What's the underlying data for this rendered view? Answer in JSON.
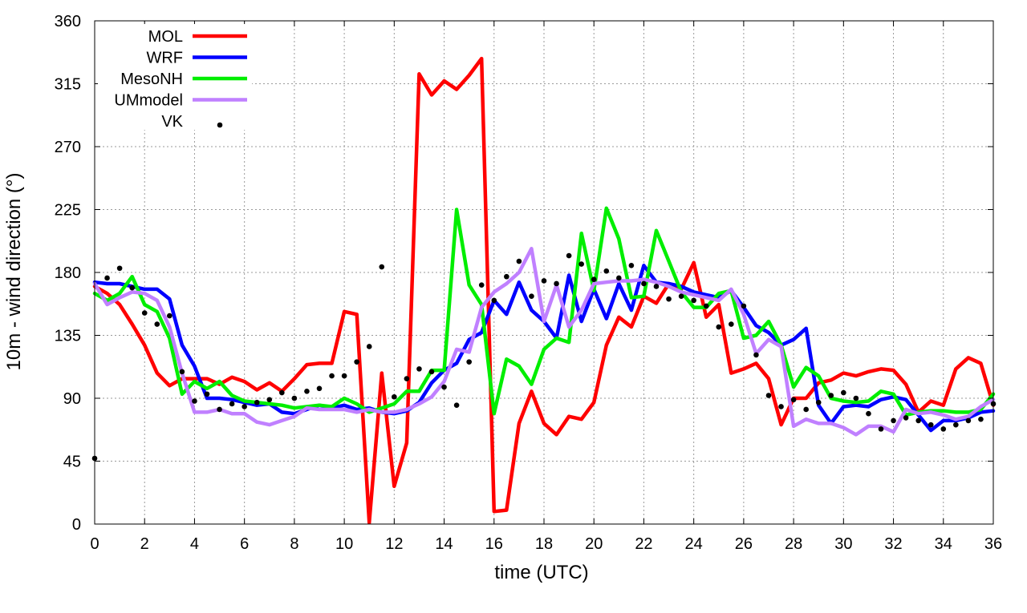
{
  "chart_data": {
    "type": "line",
    "title": "",
    "xlabel": "time (UTC)",
    "ylabel": "10m - wind direction (°)",
    "xlim": [
      0,
      36
    ],
    "ylim": [
      0,
      360
    ],
    "x_ticks": [
      0,
      2,
      4,
      6,
      8,
      10,
      12,
      14,
      16,
      18,
      20,
      22,
      24,
      26,
      28,
      30,
      32,
      34,
      36
    ],
    "y_ticks": [
      0,
      45,
      90,
      135,
      180,
      225,
      270,
      315,
      360
    ],
    "grid": true,
    "legend_position": "top-left",
    "series": [
      {
        "name": "MOL",
        "color": "#ff0000",
        "style": "line",
        "x": [
          0,
          0.5,
          1,
          1.5,
          2,
          2.5,
          3,
          3.5,
          4,
          4.5,
          5,
          5.5,
          6,
          6.5,
          7,
          7.5,
          8,
          8.5,
          9,
          9.5,
          10,
          10.5,
          11,
          11.5,
          12,
          12.5,
          13,
          13.5,
          14,
          14.5,
          15,
          15.5,
          16,
          16.5,
          17,
          17.5,
          18,
          18.5,
          19,
          19.5,
          20,
          20.5,
          21,
          21.5,
          22,
          22.5,
          23,
          23.5,
          24,
          24.5,
          25,
          25.5,
          26,
          26.5,
          27,
          27.5,
          28,
          28.5,
          29,
          29.5,
          30,
          30.5,
          31,
          31.5,
          32,
          32.5,
          33,
          33.5,
          34,
          34.5,
          35,
          35.5,
          36
        ],
        "y": [
          170,
          165,
          157,
          143,
          128,
          108,
          99,
          104,
          104,
          104,
          100,
          105,
          102,
          96,
          101,
          95,
          104,
          114,
          115,
          115,
          152,
          150,
          1,
          108,
          27,
          58,
          322,
          307,
          317,
          311,
          321,
          333,
          9,
          10,
          72,
          95,
          72,
          64,
          77,
          75,
          87,
          128,
          148,
          141,
          163,
          158,
          172,
          168,
          187,
          148,
          157,
          108,
          111,
          115,
          104,
          71,
          90,
          90,
          101,
          103,
          108,
          106,
          109,
          111,
          110,
          100,
          80,
          88,
          85,
          111,
          119,
          115,
          85
        ]
      },
      {
        "name": "WRF",
        "color": "#0000ff",
        "style": "line",
        "x": [
          0,
          0.5,
          1,
          1.5,
          2,
          2.5,
          3,
          3.5,
          4,
          4.5,
          5,
          5.5,
          6,
          6.5,
          7,
          7.5,
          8,
          8.5,
          9,
          9.5,
          10,
          10.5,
          11,
          11.5,
          12,
          12.5,
          13,
          13.5,
          14,
          14.5,
          15,
          15.5,
          16,
          16.5,
          17,
          17.5,
          18,
          18.5,
          19,
          19.5,
          20,
          20.5,
          21,
          21.5,
          22,
          22.5,
          23,
          23.5,
          24,
          24.5,
          25,
          25.5,
          26,
          26.5,
          27,
          27.5,
          28,
          28.5,
          29,
          29.5,
          30,
          30.5,
          31,
          31.5,
          32,
          32.5,
          33,
          33.5,
          34,
          34.5,
          35,
          35.5,
          36
        ],
        "y": [
          173,
          172,
          172,
          170,
          168,
          168,
          161,
          128,
          113,
          90,
          90,
          89,
          87,
          85,
          86,
          80,
          79,
          82,
          85,
          83,
          85,
          82,
          83,
          80,
          79,
          81,
          87,
          101,
          110,
          115,
          132,
          137,
          160,
          150,
          173,
          153,
          145,
          133,
          178,
          145,
          168,
          147,
          172,
          153,
          185,
          173,
          172,
          170,
          166,
          164,
          162,
          167,
          155,
          142,
          137,
          128,
          132,
          140,
          85,
          72,
          84,
          85,
          84,
          89,
          91,
          89,
          78,
          67,
          74,
          74,
          76,
          80,
          81
        ]
      },
      {
        "name": "MesoNH",
        "color": "#00ee00",
        "style": "line",
        "x": [
          0,
          0.5,
          1,
          1.5,
          2,
          2.5,
          3,
          3.5,
          4,
          4.5,
          5,
          5.5,
          6,
          6.5,
          7,
          7.5,
          8,
          8.5,
          9,
          9.5,
          10,
          10.5,
          11,
          11.5,
          12,
          12.5,
          13,
          13.5,
          14,
          14.5,
          15,
          15.5,
          16,
          16.5,
          17,
          17.5,
          18,
          18.5,
          19,
          19.5,
          20,
          20.5,
          21,
          21.5,
          22,
          22.5,
          23,
          23.5,
          24,
          24.5,
          25,
          25.5,
          26,
          26.5,
          27,
          27.5,
          28,
          28.5,
          29,
          29.5,
          30,
          30.5,
          31,
          31.5,
          32,
          32.5,
          33,
          33.5,
          34,
          34.5,
          35,
          35.5,
          36
        ],
        "y": [
          165,
          160,
          165,
          177,
          157,
          152,
          133,
          93,
          102,
          97,
          102,
          92,
          88,
          87,
          86,
          85,
          83,
          84,
          85,
          84,
          90,
          86,
          80,
          83,
          86,
          95,
          95,
          110,
          110,
          225,
          171,
          157,
          79,
          118,
          113,
          100,
          125,
          133,
          130,
          208,
          167,
          226,
          204,
          162,
          163,
          210,
          188,
          166,
          155,
          155,
          165,
          167,
          133,
          135,
          145,
          128,
          98,
          112,
          106,
          90,
          88,
          87,
          88,
          95,
          93,
          78,
          80,
          81,
          81,
          80,
          80,
          82,
          93
        ]
      },
      {
        "name": "UMmodel",
        "color": "#c080ff",
        "style": "line",
        "x": [
          0,
          0.5,
          1,
          1.5,
          2,
          2.5,
          3,
          3.5,
          4,
          4.5,
          5,
          5.5,
          6,
          6.5,
          7,
          7.5,
          8,
          8.5,
          9,
          9.5,
          10,
          10.5,
          11,
          11.5,
          12,
          12.5,
          13,
          13.5,
          14,
          14.5,
          15,
          15.5,
          16,
          16.5,
          17,
          17.5,
          18,
          18.5,
          19,
          19.5,
          20,
          20.5,
          21,
          21.5,
          22,
          22.5,
          23,
          23.5,
          24,
          24.5,
          25,
          25.5,
          26,
          26.5,
          27,
          27.5,
          28,
          28.5,
          29,
          29.5,
          30,
          30.5,
          31,
          31.5,
          32,
          32.5,
          33,
          33.5,
          34,
          34.5,
          35,
          35.5,
          36
        ],
        "y": [
          172,
          157,
          162,
          166,
          165,
          160,
          141,
          108,
          80,
          80,
          82,
          79,
          79,
          73,
          71,
          74,
          77,
          83,
          82,
          82,
          82,
          80,
          82,
          80,
          80,
          82,
          86,
          91,
          102,
          125,
          123,
          155,
          166,
          172,
          180,
          197,
          145,
          171,
          141,
          153,
          172,
          173,
          174,
          174,
          175,
          173,
          170,
          166,
          164,
          162,
          160,
          168,
          150,
          122,
          132,
          127,
          70,
          75,
          72,
          72,
          69,
          64,
          70,
          70,
          66,
          82,
          79,
          80,
          78,
          75,
          77,
          84,
          89
        ]
      },
      {
        "name": "VK",
        "color": "#000000",
        "style": "points",
        "x": [
          0,
          0.5,
          1,
          1.5,
          2,
          2.5,
          3,
          3.5,
          4,
          4.5,
          5,
          5.5,
          6,
          6.5,
          7,
          7.5,
          8,
          8.5,
          9,
          9.5,
          10,
          10.5,
          11,
          11.5,
          12,
          12.5,
          13,
          13.5,
          14,
          14.5,
          15,
          15.5,
          16,
          16.5,
          17,
          17.5,
          18,
          18.5,
          19,
          19.5,
          20,
          20.5,
          21,
          21.5,
          22,
          22.5,
          23,
          23.5,
          24,
          24.5,
          25,
          25.5,
          26,
          26.5,
          27,
          27.5,
          28,
          28.5,
          29,
          29.5,
          30,
          30.5,
          31,
          31.5,
          32,
          32.5,
          33,
          33.5,
          34,
          34.5,
          35,
          35.5,
          36
        ],
        "y": [
          47,
          176,
          183,
          169,
          151,
          143,
          149,
          109,
          88,
          93,
          82,
          86,
          84,
          87,
          89,
          94,
          90,
          95,
          97,
          106,
          106,
          116,
          127,
          184,
          91,
          104,
          111,
          109,
          98,
          85,
          116,
          171,
          160,
          177,
          188,
          163,
          174,
          172,
          192,
          186,
          175,
          181,
          176,
          185,
          172,
          170,
          161,
          163,
          160,
          156,
          141,
          143,
          156,
          121,
          92,
          84,
          89,
          82,
          87,
          92,
          94,
          90,
          79,
          68,
          74,
          76,
          74,
          71,
          68,
          71,
          74,
          75,
          86
        ]
      }
    ]
  }
}
